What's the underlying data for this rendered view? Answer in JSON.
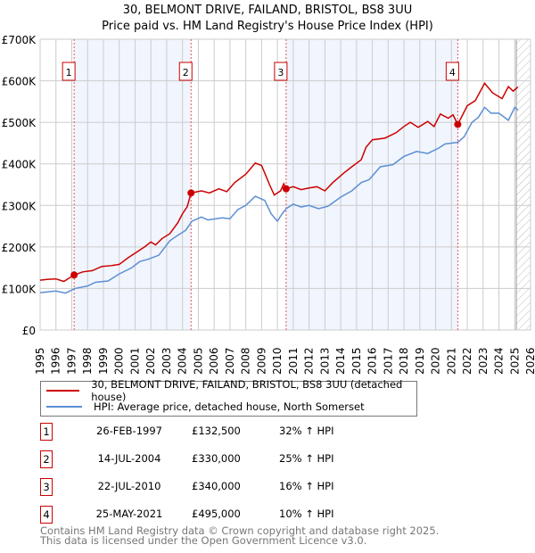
{
  "chart_data": {
    "type": "line",
    "title": "30, BELMONT DRIVE, FAILAND, BRISTOL, BS8 3UU",
    "subtitle": "Price paid vs. HM Land Registry's House Price Index (HPI)",
    "xlim": [
      1995,
      2026
    ],
    "ylim": [
      0,
      700000
    ],
    "y_ticks": [
      {
        "v": 0,
        "label": "£0"
      },
      {
        "v": 100000,
        "label": "£100K"
      },
      {
        "v": 200000,
        "label": "£200K"
      },
      {
        "v": 300000,
        "label": "£300K"
      },
      {
        "v": 400000,
        "label": "£400K"
      },
      {
        "v": 500000,
        "label": "£500K"
      },
      {
        "v": 600000,
        "label": "£600K"
      },
      {
        "v": 700000,
        "label": "£700K"
      }
    ],
    "x_ticks": [
      "1995",
      "1996",
      "1997",
      "1998",
      "1999",
      "2000",
      "2001",
      "2002",
      "2003",
      "2004",
      "2005",
      "2006",
      "2007",
      "2008",
      "2009",
      "2010",
      "2011",
      "2012",
      "2013",
      "2014",
      "2015",
      "2016",
      "2017",
      "2018",
      "2019",
      "2020",
      "2021",
      "2022",
      "2023",
      "2024",
      "2025",
      "2026"
    ],
    "grid": true,
    "shaded_ranges": [
      [
        1997.15,
        2004.54
      ],
      [
        2010.55,
        2021.4
      ]
    ],
    "forecast_hatch_from": 2025.1,
    "series": [
      {
        "name": "30, BELMONT DRIVE, FAILAND, BRISTOL, BS8 3UU (detached house)",
        "color": "#cc0000",
        "points": [
          [
            1995,
            120
          ],
          [
            1995.5,
            122
          ],
          [
            1996,
            123
          ],
          [
            1996.5,
            117
          ],
          [
            1997.15,
            132.5
          ],
          [
            1997.7,
            140
          ],
          [
            1998.3,
            143
          ],
          [
            1998.9,
            153
          ],
          [
            1999.5,
            155
          ],
          [
            2000,
            158
          ],
          [
            2000.6,
            175
          ],
          [
            2001,
            185
          ],
          [
            2001.6,
            200
          ],
          [
            2002,
            212
          ],
          [
            2002.3,
            205
          ],
          [
            2002.7,
            220
          ],
          [
            2003.2,
            232
          ],
          [
            2003.7,
            258
          ],
          [
            2004,
            280
          ],
          [
            2004.3,
            297
          ],
          [
            2004.54,
            330
          ],
          [
            2005.2,
            335
          ],
          [
            2005.7,
            330
          ],
          [
            2006.3,
            340
          ],
          [
            2006.8,
            333
          ],
          [
            2007.3,
            355
          ],
          [
            2008,
            375
          ],
          [
            2008.6,
            402
          ],
          [
            2009,
            396
          ],
          [
            2009.5,
            350
          ],
          [
            2009.8,
            325
          ],
          [
            2010.2,
            335
          ],
          [
            2010.4,
            352
          ],
          [
            2010.55,
            340
          ],
          [
            2011,
            345
          ],
          [
            2011.5,
            338
          ],
          [
            2012,
            342
          ],
          [
            2012.5,
            345
          ],
          [
            2013,
            335
          ],
          [
            2013.5,
            355
          ],
          [
            2014.2,
            378
          ],
          [
            2014.7,
            393
          ],
          [
            2015.3,
            410
          ],
          [
            2015.6,
            440
          ],
          [
            2016,
            458
          ],
          [
            2016.8,
            462
          ],
          [
            2017.5,
            475
          ],
          [
            2018,
            490
          ],
          [
            2018.4,
            500
          ],
          [
            2018.9,
            488
          ],
          [
            2019.5,
            502
          ],
          [
            2019.9,
            490
          ],
          [
            2020.3,
            520
          ],
          [
            2020.8,
            510
          ],
          [
            2021.1,
            518
          ],
          [
            2021.4,
            495
          ],
          [
            2022,
            540
          ],
          [
            2022.5,
            552
          ],
          [
            2023.1,
            594
          ],
          [
            2023.6,
            571
          ],
          [
            2024.2,
            557
          ],
          [
            2024.6,
            586
          ],
          [
            2024.9,
            575
          ],
          [
            2025.2,
            585
          ]
        ]
      },
      {
        "name": "HPI: Average price, detached house, North Somerset",
        "color": "#5b8fd4",
        "points": [
          [
            1995,
            90
          ],
          [
            1996,
            94
          ],
          [
            1996.6,
            89
          ],
          [
            1997.2,
            100
          ],
          [
            1998,
            106
          ],
          [
            1998.5,
            115
          ],
          [
            1999.3,
            118
          ],
          [
            2000,
            135
          ],
          [
            2000.8,
            150
          ],
          [
            2001.3,
            165
          ],
          [
            2001.8,
            170
          ],
          [
            2002.5,
            180
          ],
          [
            2003.2,
            215
          ],
          [
            2003.7,
            228
          ],
          [
            2004.2,
            240
          ],
          [
            2004.6,
            262
          ],
          [
            2005.2,
            272
          ],
          [
            2005.6,
            265
          ],
          [
            2006.5,
            270
          ],
          [
            2007,
            268
          ],
          [
            2007.5,
            290
          ],
          [
            2008,
            300
          ],
          [
            2008.6,
            322
          ],
          [
            2009.2,
            312
          ],
          [
            2009.6,
            280
          ],
          [
            2010,
            262
          ],
          [
            2010.3,
            280
          ],
          [
            2010.55,
            292
          ],
          [
            2011,
            303
          ],
          [
            2011.5,
            296
          ],
          [
            2012,
            300
          ],
          [
            2012.6,
            292
          ],
          [
            2013.2,
            298
          ],
          [
            2014,
            320
          ],
          [
            2014.7,
            335
          ],
          [
            2015.3,
            355
          ],
          [
            2015.8,
            362
          ],
          [
            2016.5,
            393
          ],
          [
            2017.3,
            398
          ],
          [
            2018,
            418
          ],
          [
            2018.8,
            430
          ],
          [
            2019.5,
            425
          ],
          [
            2020.2,
            438
          ],
          [
            2020.6,
            448
          ],
          [
            2021.4,
            452
          ],
          [
            2021.8,
            465
          ],
          [
            2022.3,
            500
          ],
          [
            2022.7,
            512
          ],
          [
            2023.1,
            536
          ],
          [
            2023.5,
            522
          ],
          [
            2024,
            522
          ],
          [
            2024.6,
            505
          ],
          [
            2025,
            536
          ],
          [
            2025.2,
            530
          ]
        ]
      }
    ],
    "sales": [
      {
        "n": "1",
        "x": 1997.15,
        "y": 132.5
      },
      {
        "n": "2",
        "x": 2004.54,
        "y": 330
      },
      {
        "n": "3",
        "x": 2010.55,
        "y": 340
      },
      {
        "n": "4",
        "x": 2021.4,
        "y": 495
      }
    ]
  },
  "legend": {
    "red": "30, BELMONT DRIVE, FAILAND, BRISTOL, BS8 3UU (detached house)",
    "blue": "HPI: Average price, detached house, North Somerset"
  },
  "transactions": [
    {
      "n": "1",
      "date": "26-FEB-1997",
      "price": "£132,500",
      "hpi": "32% ↑ HPI"
    },
    {
      "n": "2",
      "date": "14-JUL-2004",
      "price": "£330,000",
      "hpi": "25% ↑ HPI"
    },
    {
      "n": "3",
      "date": "22-JUL-2010",
      "price": "£340,000",
      "hpi": "16% ↑ HPI"
    },
    {
      "n": "4",
      "date": "25-MAY-2021",
      "price": "£495,000",
      "hpi": "10% ↑ HPI"
    }
  ],
  "footer": {
    "line1": "Contains HM Land Registry data © Crown copyright and database right 2025.",
    "line2": "This data is licensed under the Open Government Licence v3.0."
  }
}
